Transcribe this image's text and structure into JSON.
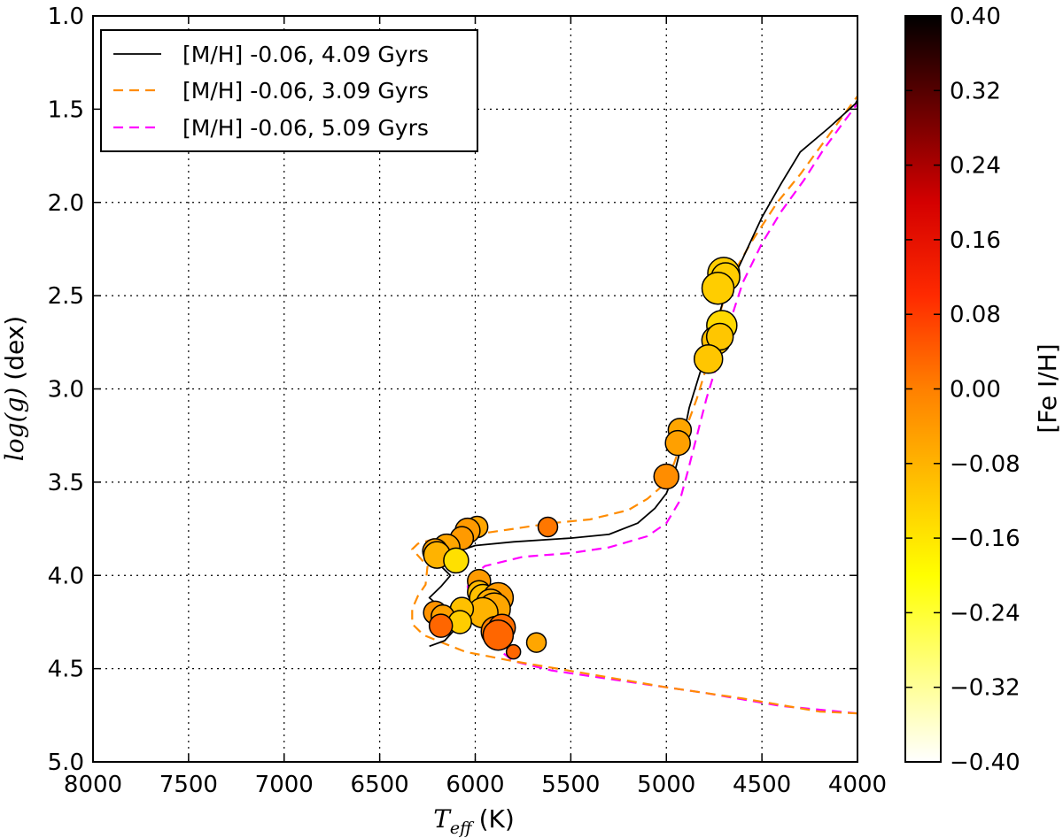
{
  "chart_data": {
    "type": "scatter",
    "xlabel_math": "T",
    "xlabel_sub": "eff",
    "xlabel_unit": "(K)",
    "ylabel_math": "log(g)",
    "ylabel_unit": "(dex)",
    "colorbar_label": "[Fe I/H]",
    "xlim": [
      8000,
      4000
    ],
    "ylim": [
      5.0,
      1.0
    ],
    "x_ticks": [
      8000,
      7500,
      7000,
      6500,
      6000,
      5500,
      5000,
      4500,
      4000
    ],
    "y_ticks": [
      "1.0",
      "1.5",
      "2.0",
      "2.5",
      "3.0",
      "3.5",
      "4.0",
      "4.5",
      "5.0"
    ],
    "colorbar_range": [
      -0.4,
      0.4
    ],
    "colorbar_ticks": [
      "0.40",
      "0.32",
      "0.24",
      "0.16",
      "0.08",
      "0.00",
      "−0.08",
      "−0.16",
      "−0.24",
      "−0.32",
      "−0.40"
    ],
    "colormap": "hot_r",
    "grid": true,
    "legend_position": "top-left",
    "series": [
      {
        "name": "[M/H] -0.06, 4.09 Gyrs",
        "color": "#000000",
        "dash": "solid",
        "points": [
          [
            6240,
            4.38
          ],
          [
            6160,
            4.35
          ],
          [
            6080,
            4.26
          ],
          [
            6240,
            4.12
          ],
          [
            6180,
            4.06
          ],
          [
            6130,
            4.0
          ],
          [
            6200,
            3.93
          ],
          [
            6120,
            3.88
          ],
          [
            6000,
            3.84
          ],
          [
            5800,
            3.82
          ],
          [
            5500,
            3.8
          ],
          [
            5300,
            3.78
          ],
          [
            5150,
            3.72
          ],
          [
            5060,
            3.64
          ],
          [
            5000,
            3.56
          ],
          [
            4960,
            3.46
          ],
          [
            4920,
            3.3
          ],
          [
            4880,
            3.1
          ],
          [
            4820,
            2.9
          ],
          [
            4760,
            2.72
          ],
          [
            4700,
            2.52
          ],
          [
            4600,
            2.3
          ],
          [
            4500,
            2.08
          ],
          [
            4400,
            1.9
          ],
          [
            4300,
            1.73
          ],
          [
            4150,
            1.6
          ],
          [
            4010,
            1.47
          ],
          [
            4000,
            1.45
          ],
          [
            4000,
            1.45
          ]
        ]
      },
      {
        "name": "[M/H] -0.06, 3.09 Gyrs",
        "color": "#ff8c00",
        "dash": "dashed",
        "points": [
          [
            4000,
            4.74
          ],
          [
            4200,
            4.73
          ],
          [
            4600,
            4.66
          ],
          [
            5000,
            4.6
          ],
          [
            5400,
            4.53
          ],
          [
            5800,
            4.46
          ],
          [
            6050,
            4.41
          ],
          [
            6150,
            4.37
          ],
          [
            6270,
            4.32
          ],
          [
            6330,
            4.26
          ],
          [
            6330,
            4.18
          ],
          [
            6300,
            4.11
          ],
          [
            6260,
            4.05
          ],
          [
            6250,
            3.95
          ],
          [
            6330,
            3.86
          ],
          [
            6300,
            3.83
          ],
          [
            6200,
            3.8
          ],
          [
            6000,
            3.78
          ],
          [
            5800,
            3.75
          ],
          [
            5600,
            3.72
          ],
          [
            5400,
            3.7
          ],
          [
            5200,
            3.65
          ],
          [
            5100,
            3.59
          ],
          [
            5020,
            3.52
          ],
          [
            4960,
            3.4
          ],
          [
            4900,
            3.22
          ],
          [
            4840,
            3.05
          ],
          [
            4780,
            2.85
          ],
          [
            4730,
            2.63
          ],
          [
            4670,
            2.42
          ],
          [
            4560,
            2.22
          ],
          [
            4420,
            2.0
          ],
          [
            4300,
            1.85
          ],
          [
            4200,
            1.71
          ],
          [
            4100,
            1.57
          ],
          [
            4000,
            1.43
          ]
        ]
      },
      {
        "name": "[M/H] -0.06, 5.09 Gyrs",
        "color": "#ff00ff",
        "dash": "dashed",
        "points": [
          [
            4000,
            4.74
          ],
          [
            4400,
            4.7
          ],
          [
            4800,
            4.63
          ],
          [
            5200,
            4.57
          ],
          [
            5600,
            4.51
          ],
          [
            5800,
            4.46
          ],
          [
            5900,
            4.38
          ],
          [
            5950,
            4.28
          ],
          [
            5970,
            4.22
          ],
          [
            6000,
            4.17
          ],
          [
            6030,
            4.1
          ],
          [
            6040,
            4.06
          ],
          [
            6010,
            4.0
          ],
          [
            5950,
            3.95
          ],
          [
            5750,
            3.9
          ],
          [
            5500,
            3.88
          ],
          [
            5300,
            3.85
          ],
          [
            5100,
            3.79
          ],
          [
            5000,
            3.72
          ],
          [
            4930,
            3.6
          ],
          [
            4890,
            3.45
          ],
          [
            4840,
            3.25
          ],
          [
            4790,
            3.05
          ],
          [
            4730,
            2.85
          ],
          [
            4670,
            2.65
          ],
          [
            4600,
            2.43
          ],
          [
            4500,
            2.22
          ],
          [
            4400,
            2.05
          ],
          [
            4280,
            1.88
          ],
          [
            4180,
            1.72
          ],
          [
            4080,
            1.58
          ],
          [
            4000,
            1.47
          ]
        ]
      }
    ],
    "scatter_points": [
      {
        "x": 4700,
        "y": 2.38,
        "feh": -0.12,
        "size": 18
      },
      {
        "x": 4690,
        "y": 2.4,
        "feh": -0.12,
        "size": 16
      },
      {
        "x": 4730,
        "y": 2.46,
        "feh": -0.12,
        "size": 18
      },
      {
        "x": 4710,
        "y": 2.66,
        "feh": -0.14,
        "size": 17
      },
      {
        "x": 4740,
        "y": 2.74,
        "feh": -0.1,
        "size": 16
      },
      {
        "x": 4720,
        "y": 2.72,
        "feh": -0.11,
        "size": 15
      },
      {
        "x": 4780,
        "y": 2.84,
        "feh": -0.11,
        "size": 16
      },
      {
        "x": 4930,
        "y": 3.22,
        "feh": -0.06,
        "size": 13
      },
      {
        "x": 4940,
        "y": 3.29,
        "feh": -0.05,
        "size": 14
      },
      {
        "x": 5000,
        "y": 3.47,
        "feh": -0.02,
        "size": 14
      },
      {
        "x": 5620,
        "y": 3.74,
        "feh": 0.01,
        "size": 11
      },
      {
        "x": 5990,
        "y": 3.74,
        "feh": -0.06,
        "size": 12
      },
      {
        "x": 6040,
        "y": 3.76,
        "feh": -0.04,
        "size": 14
      },
      {
        "x": 6070,
        "y": 3.8,
        "feh": -0.04,
        "size": 13
      },
      {
        "x": 6150,
        "y": 3.85,
        "feh": -0.06,
        "size": 15
      },
      {
        "x": 6210,
        "y": 3.87,
        "feh": -0.05,
        "size": 14
      },
      {
        "x": 6200,
        "y": 3.89,
        "feh": -0.08,
        "size": 15
      },
      {
        "x": 6100,
        "y": 3.92,
        "feh": -0.15,
        "size": 14
      },
      {
        "x": 5980,
        "y": 4.03,
        "feh": -0.04,
        "size": 13
      },
      {
        "x": 5980,
        "y": 4.09,
        "feh": -0.09,
        "size": 13
      },
      {
        "x": 5960,
        "y": 4.12,
        "feh": -0.1,
        "size": 15
      },
      {
        "x": 5880,
        "y": 4.12,
        "feh": -0.04,
        "size": 17
      },
      {
        "x": 5920,
        "y": 4.15,
        "feh": -0.07,
        "size": 16
      },
      {
        "x": 5900,
        "y": 4.18,
        "feh": -0.06,
        "size": 18
      },
      {
        "x": 5960,
        "y": 4.2,
        "feh": -0.08,
        "size": 17
      },
      {
        "x": 6070,
        "y": 4.18,
        "feh": -0.1,
        "size": 13
      },
      {
        "x": 6210,
        "y": 4.2,
        "feh": -0.03,
        "size": 13
      },
      {
        "x": 6170,
        "y": 4.22,
        "feh": -0.05,
        "size": 13
      },
      {
        "x": 6080,
        "y": 4.25,
        "feh": -0.12,
        "size": 13
      },
      {
        "x": 6180,
        "y": 4.27,
        "feh": 0.03,
        "size": 13
      },
      {
        "x": 5890,
        "y": 4.3,
        "feh": 0.0,
        "size": 17
      },
      {
        "x": 5860,
        "y": 4.28,
        "feh": 0.02,
        "size": 15
      },
      {
        "x": 5880,
        "y": 4.32,
        "feh": 0.03,
        "size": 17
      },
      {
        "x": 5680,
        "y": 4.36,
        "feh": -0.06,
        "size": 11
      },
      {
        "x": 5800,
        "y": 4.41,
        "feh": 0.03,
        "size": 8
      }
    ]
  }
}
